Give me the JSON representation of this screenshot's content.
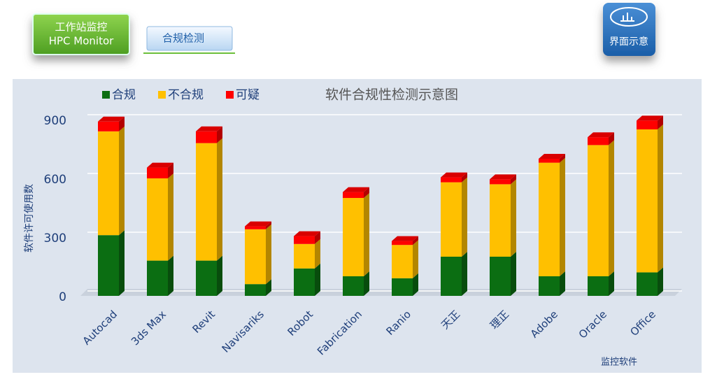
{
  "header": {
    "station_title": "工作站监控",
    "station_subtitle": "HPC Monitor",
    "tab": "合规检测",
    "view_button": "界面示意"
  },
  "chart_data": {
    "type": "stacked-bar-3d",
    "title": "软件合规性检测示意图",
    "y_label": "软件许可使用数",
    "x_label": "监控软件",
    "categories": [
      "Autocad",
      "3ds Max",
      "Revit",
      "Navisariks",
      "Robot",
      "Fabrication",
      "Ranio",
      "天正",
      "理正",
      "Adobe",
      "Oracle",
      "Office"
    ],
    "series": [
      {
        "name": "合规",
        "color": "#0b6e12",
        "values": [
          310,
          180,
          180,
          60,
          140,
          100,
          90,
          200,
          200,
          100,
          100,
          120
        ]
      },
      {
        "name": "不合规",
        "color": "#ffc000",
        "values": [
          530,
          420,
          600,
          280,
          125,
          400,
          170,
          380,
          370,
          580,
          670,
          730
        ]
      },
      {
        "name": "可疑",
        "color": "#ff0000",
        "values": [
          50,
          55,
          60,
          15,
          40,
          30,
          20,
          25,
          25,
          20,
          40,
          45
        ]
      }
    ],
    "ylim": [
      0,
      900
    ],
    "yticks": [
      0,
      300,
      600,
      900
    ],
    "grid": true
  }
}
